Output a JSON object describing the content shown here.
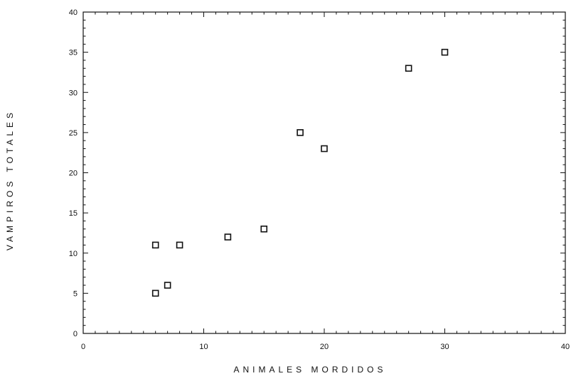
{
  "chart_data": {
    "type": "scatter",
    "title": "",
    "xlabel": "ANIMALES MORDIDOS",
    "ylabel": "VAMPIROS TOTALES",
    "xlim": [
      0,
      40
    ],
    "ylim": [
      0,
      40
    ],
    "x_ticks": [
      0,
      10,
      20,
      30,
      40
    ],
    "y_ticks": [
      0,
      5,
      10,
      15,
      20,
      25,
      30,
      35,
      40
    ],
    "grid": false,
    "legend": "none",
    "marker": "open-square",
    "colors": {
      "marker": "#111111",
      "axis": "#111111"
    },
    "series": [
      {
        "points": [
          {
            "x": 6,
            "y": 11
          },
          {
            "x": 6,
            "y": 5
          },
          {
            "x": 7,
            "y": 6
          },
          {
            "x": 8,
            "y": 11
          },
          {
            "x": 12,
            "y": 12
          },
          {
            "x": 15,
            "y": 13
          },
          {
            "x": 18,
            "y": 25
          },
          {
            "x": 20,
            "y": 23
          },
          {
            "x": 27,
            "y": 33
          },
          {
            "x": 30,
            "y": 35
          }
        ]
      }
    ]
  }
}
